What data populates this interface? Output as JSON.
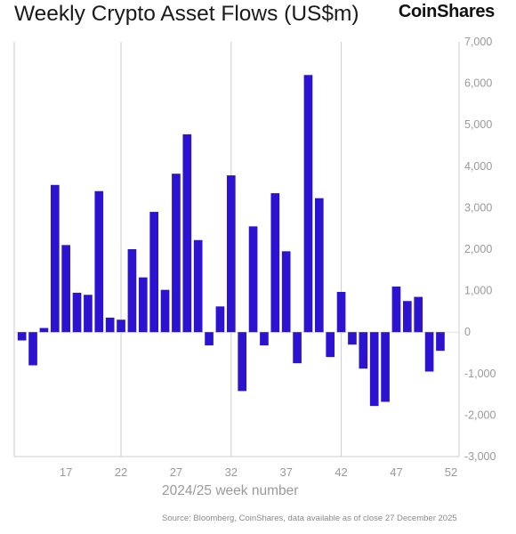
{
  "header": {
    "title": "Weekly Crypto Asset Flows (US$m)",
    "brand": "CoinShares"
  },
  "footer": {
    "source": "Source: Bloomberg, CoinShares, data available as of close 27 December 2025"
  },
  "colors": {
    "bar": "#2b13d1",
    "grid": "#cccccc",
    "tick": "#999999"
  },
  "chart_data": {
    "type": "bar",
    "title": "Weekly Crypto Asset Flows (US$m)",
    "xlabel": "2024/25 week number",
    "ylabel": "",
    "ylim": [
      -3000,
      7000
    ],
    "yticks": [
      -3000,
      -2000,
      -1000,
      0,
      1000,
      2000,
      3000,
      4000,
      5000,
      6000,
      7000
    ],
    "ytick_labels": [
      "-3,000",
      "-2,000",
      "-1,000",
      "0",
      "1,000",
      "2,000",
      "3,000",
      "4,000",
      "5,000",
      "6,000",
      "7,000"
    ],
    "xtick_labels": [
      "17",
      "22",
      "27",
      "32",
      "37",
      "42",
      "47",
      "52"
    ],
    "xtick_positions": [
      17,
      22,
      27,
      32,
      37,
      42,
      47,
      52
    ],
    "grid": "vertical",
    "y_axis_side": "right",
    "x": [
      13,
      14,
      15,
      16,
      17,
      18,
      19,
      20,
      21,
      22,
      23,
      24,
      25,
      26,
      27,
      28,
      29,
      30,
      31,
      32,
      33,
      34,
      35,
      36,
      37,
      38,
      39,
      40,
      41,
      42,
      43,
      44,
      45,
      46,
      47,
      48,
      49,
      50,
      51,
      52
    ],
    "values": [
      -200,
      -800,
      100,
      3550,
      2100,
      950,
      900,
      3400,
      350,
      300,
      2000,
      1320,
      2900,
      1020,
      3820,
      4770,
      2220,
      -320,
      620,
      3780,
      -1420,
      2550,
      -320,
      3350,
      1950,
      -750,
      6200,
      3230,
      -600,
      970,
      -300,
      -880,
      -1780,
      -1680,
      1100,
      750,
      850,
      -950,
      -450,
      0
    ]
  }
}
